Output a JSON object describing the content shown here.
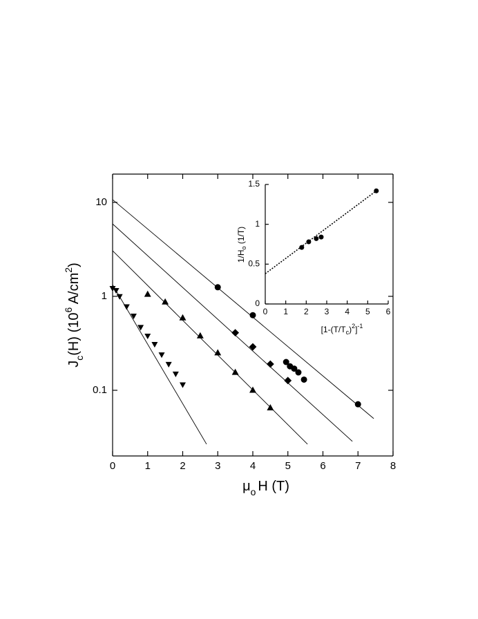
{
  "chart_data": [
    {
      "type": "scatter",
      "log_y": true,
      "frame": "box",
      "xlim": [
        0,
        8
      ],
      "ylim": [
        0.02,
        20
      ],
      "xticks": [
        0,
        1,
        2,
        3,
        4,
        5,
        6,
        7,
        8
      ],
      "yticks": [
        0.1,
        1,
        10
      ],
      "xlabel": [
        "μ",
        "o",
        "H (T)"
      ],
      "ylabel": [
        "J",
        "c",
        "(H) (10",
        "6",
        " A/cm",
        "2",
        ")"
      ],
      "series": [
        {
          "marker": "circle",
          "color": "#000",
          "x": [
            3,
            4,
            4.95,
            5.06,
            5.18,
            5.3,
            5.46,
            7
          ],
          "values": [
            1.25,
            0.63,
            0.2,
            0.18,
            0.17,
            0.155,
            0.13,
            0.071
          ]
        },
        {
          "marker": "diamond",
          "color": "#000",
          "x": [
            3.5,
            4,
            4.5,
            5
          ],
          "values": [
            0.41,
            0.29,
            0.19,
            0.127
          ]
        },
        {
          "marker": "triangle-up",
          "color": "#000",
          "x": [
            1,
            1.5,
            2,
            2.5,
            3,
            3.5,
            4,
            4.5
          ],
          "values": [
            1.05,
            0.87,
            0.59,
            0.38,
            0.25,
            0.155,
            0.1,
            0.065
          ]
        },
        {
          "marker": "triangle-down",
          "color": "#000",
          "x": [
            0,
            0.1,
            0.2,
            0.4,
            0.6,
            0.8,
            1,
            1.2,
            1.4,
            1.6,
            1.8,
            2
          ],
          "values": [
            1.22,
            1.16,
            1,
            0.78,
            0.62,
            0.47,
            0.38,
            0.31,
            0.24,
            0.19,
            0.15,
            0.115
          ]
        }
      ],
      "fit_lines": [
        {
          "x": [
            0,
            7.45
          ],
          "values": [
            10.7,
            0.05
          ]
        },
        {
          "x": [
            0,
            6.84
          ],
          "values": [
            5.9,
            0.0286
          ]
        },
        {
          "x": [
            0,
            5.56
          ],
          "values": [
            3.06,
            0.0267
          ]
        },
        {
          "x": [
            0,
            2.68
          ],
          "values": [
            1.33,
            0.0267
          ]
        }
      ],
      "fit_style": "solid"
    },
    {
      "type": "scatter",
      "log_y": false,
      "frame": "open",
      "xlim": [
        0,
        6
      ],
      "ylim": [
        0,
        1.5
      ],
      "xticks": [
        0,
        1,
        2,
        3,
        4,
        5,
        6
      ],
      "yticks": [
        0,
        0.5,
        1,
        1.5
      ],
      "xlabel": [
        "[1-(T/T",
        "c",
        ")",
        "2",
        "]",
        "-1"
      ],
      "ylabel": [
        "1/H",
        "o",
        " (1/T)"
      ],
      "series": [
        {
          "marker": "circle",
          "color": "#000",
          "x": [
            1.78,
            2.12,
            2.49,
            2.73,
            5.42
          ],
          "values": [
            0.71,
            0.78,
            0.82,
            0.84,
            1.42
          ]
        }
      ],
      "fit_lines": [
        {
          "x": [
            0,
            5.42
          ],
          "values": [
            0.38,
            1.42
          ]
        }
      ],
      "fit_style": "dotted"
    }
  ]
}
